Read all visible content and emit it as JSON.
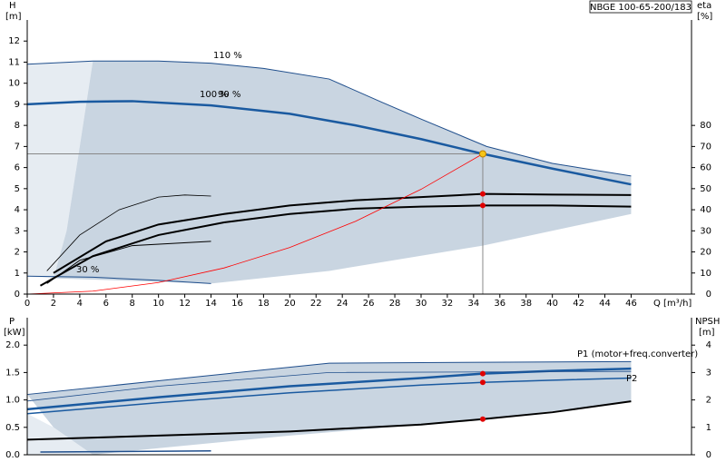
{
  "chart_data": [
    {
      "type": "line",
      "title": "NBGE 100-65-200/183",
      "ylabel": "H",
      "yunit": "[m]",
      "y2label": "eta",
      "y2unit": "[%]",
      "xlabel": "Q [m³/h]",
      "xlim": [
        0,
        50.6
      ],
      "xticks": [
        0,
        2,
        4,
        6,
        8,
        10,
        12,
        14,
        16,
        18,
        20,
        22,
        24,
        26,
        28,
        30,
        32,
        34,
        36,
        38,
        40,
        42,
        44,
        46
      ],
      "ylim": [
        0,
        13
      ],
      "yticks": [
        0,
        1,
        2,
        3,
        4,
        5,
        6,
        7,
        8,
        9,
        10,
        11,
        12
      ],
      "y2lim": [
        0,
        130
      ],
      "y2ticks": [
        0,
        10,
        20,
        30,
        40,
        50,
        60,
        70,
        80
      ],
      "regions": [
        {
          "color": "#e6ecf2",
          "x": [
            0,
            5,
            4,
            3,
            2,
            0
          ],
          "y": [
            10.9,
            11.05,
            7,
            3,
            0.75,
            0.85
          ]
        },
        {
          "color": "#c9d5e1",
          "x": [
            5,
            10,
            14,
            18,
            23,
            27,
            30,
            35,
            40,
            46,
            46,
            34.7,
            23,
            14,
            2,
            3,
            4
          ],
          "y": [
            11.05,
            11.05,
            10.95,
            10.7,
            10.2,
            9.1,
            8.3,
            7.0,
            6.2,
            5.6,
            3.8,
            2.3,
            1.1,
            0.5,
            0.75,
            3,
            7
          ]
        }
      ],
      "series": [
        {
          "name": "110 %",
          "color": "#1f4e8c",
          "width": 1,
          "x": [
            0,
            5,
            10,
            14,
            18,
            23,
            27,
            30,
            35,
            40,
            46
          ],
          "values": [
            10.9,
            11.05,
            11.05,
            10.95,
            10.7,
            10.2,
            9.1,
            8.3,
            7.0,
            6.2,
            5.6
          ]
        },
        {
          "name": "100 %",
          "color": "#1a5aa0",
          "width": 2.5,
          "x": [
            0,
            4,
            8,
            14,
            20,
            25,
            30,
            34.7,
            40,
            46
          ],
          "values": [
            9.0,
            9.12,
            9.15,
            8.95,
            8.55,
            8.0,
            7.35,
            6.65,
            5.95,
            5.2
          ]
        },
        {
          "name": "30 %",
          "color": "#1f4e8c",
          "width": 1,
          "x": [
            0,
            5,
            10,
            14
          ],
          "values": [
            0.85,
            0.8,
            0.65,
            0.5
          ]
        },
        {
          "color": "#000000",
          "width": 2,
          "axis": "y2",
          "x": [
            2,
            6,
            10,
            15,
            20,
            25,
            30,
            34.7,
            40,
            46
          ],
          "values": [
            10,
            25,
            33,
            38,
            42,
            44.5,
            46,
            47.5,
            47.2,
            47
          ]
        },
        {
          "color": "#000000",
          "width": 2,
          "axis": "y2",
          "x": [
            1,
            5,
            10,
            15,
            20,
            25,
            30,
            34.7,
            40,
            46
          ],
          "values": [
            4,
            18,
            28,
            34,
            38,
            40.5,
            41.5,
            42,
            42,
            41.5
          ]
        },
        {
          "color": "#000000",
          "width": 0.8,
          "axis": "y2",
          "x": [
            1.5,
            4,
            7,
            10,
            12,
            14
          ],
          "values": [
            11,
            28,
            40,
            46,
            47,
            46.5
          ]
        },
        {
          "color": "#000000",
          "width": 1,
          "axis": "y2",
          "x": [
            1.5,
            4,
            8,
            14
          ],
          "values": [
            5,
            16,
            23,
            25
          ]
        },
        {
          "color": "#ff0000",
          "width": 0.8,
          "x": [
            0,
            5,
            10,
            15,
            20,
            25,
            30,
            34.7
          ],
          "values": [
            0,
            0.14,
            0.55,
            1.24,
            2.21,
            3.45,
            4.97,
            6.65
          ]
        }
      ],
      "annotations": [
        "90 %"
      ],
      "points": [
        {
          "x": 34.7,
          "y": 6.65,
          "color": "#f5c518",
          "crosshair": true
        },
        {
          "x": 34.7,
          "y": 47.5,
          "axis": "y2",
          "color": "#e00000"
        },
        {
          "x": 34.7,
          "y": 42,
          "axis": "y2",
          "color": "#e00000"
        }
      ]
    },
    {
      "type": "line",
      "ylabel": "P",
      "yunit": "[kW]",
      "y2label": "NPSH",
      "y2unit": "[m]",
      "xlim": [
        0,
        50.6
      ],
      "ylim": [
        0,
        2.5
      ],
      "yticks": [
        {
          "value": 0,
          "label": "0.0"
        },
        0.5,
        {
          "value": 1,
          "label": "1.0"
        },
        1.5,
        {
          "value": 2,
          "label": "2.0"
        }
      ],
      "y2lim": [
        0,
        5
      ],
      "y2ticks": [
        0,
        1,
        2,
        3,
        4
      ],
      "regions": [
        {
          "color": "#e6ecf2",
          "x": [
            0,
            2,
            5,
            0
          ],
          "y": [
            0.75,
            0.5,
            0,
            0
          ]
        },
        {
          "color": "#c9d5e1",
          "x": [
            0,
            10,
            23,
            46,
            46,
            35,
            20,
            10,
            5,
            2
          ],
          "y": [
            1.1,
            1.35,
            1.67,
            1.7,
            0.97,
            0.65,
            0.35,
            0.12,
            0,
            0.5
          ]
        }
      ],
      "series": [
        {
          "color": "#1f4e8c",
          "width": 1,
          "x": [
            0,
            10,
            23,
            30,
            46
          ],
          "values": [
            1.1,
            1.35,
            1.67,
            1.68,
            1.7
          ]
        },
        {
          "name": "P1 (motor+freq.converter)",
          "color": "#1a5aa0",
          "width": 2.5,
          "x": [
            0,
            10,
            20,
            30,
            34.7,
            40,
            46
          ],
          "values": [
            0.83,
            1.05,
            1.25,
            1.4,
            1.48,
            1.53,
            1.57
          ]
        },
        {
          "color": "#1f4e8c",
          "width": 0.8,
          "x": [
            0,
            10,
            23,
            46
          ],
          "values": [
            0.98,
            1.25,
            1.5,
            1.52
          ]
        },
        {
          "name": "P2",
          "color": "#1a5aa0",
          "width": 1.5,
          "x": [
            0,
            10,
            20,
            30,
            34.7,
            40,
            46
          ],
          "values": [
            0.75,
            0.95,
            1.13,
            1.27,
            1.32,
            1.36,
            1.4
          ]
        },
        {
          "color": "#000000",
          "width": 2,
          "axis": "y2",
          "x": [
            0,
            10,
            20,
            30,
            34.7,
            40,
            46
          ],
          "values": [
            0.55,
            0.7,
            0.85,
            1.1,
            1.3,
            1.55,
            1.95
          ]
        },
        {
          "color": "#1f4e8c",
          "width": 1.5,
          "x": [
            1,
            14
          ],
          "values": [
            0.05,
            0.07
          ]
        }
      ],
      "points": [
        {
          "x": 34.7,
          "y": 1.48,
          "color": "#e00000"
        },
        {
          "x": 34.7,
          "y": 1.32,
          "color": "#e00000"
        },
        {
          "x": 34.7,
          "y": 1.3,
          "axis": "y2",
          "color": "#e00000"
        }
      ]
    }
  ]
}
